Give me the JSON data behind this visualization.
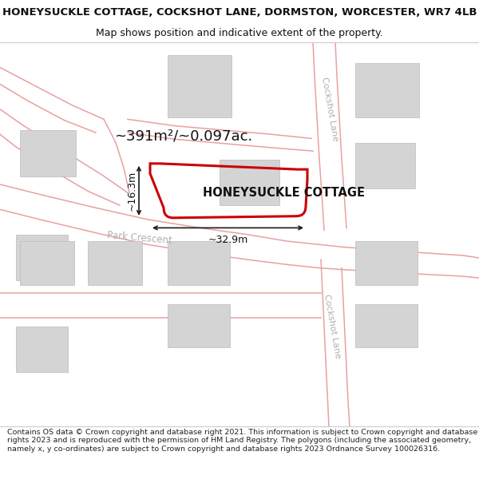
{
  "title_line1": "HONEYSUCKLE COTTAGE, COCKSHOT LANE, DORMSTON, WORCESTER, WR7 4LB",
  "title_line2": "Map shows position and indicative extent of the property.",
  "property_label": "HONEYSUCKLE COTTAGE",
  "area_label": "~391m²/~0.097ac.",
  "dim_width": "~32.9m",
  "dim_height": "~16.3m",
  "street_cockshot_top": "Cockshot Lane",
  "street_cockshot_bot": "Cockshot Lane",
  "street_park": "Park Crescent",
  "footer_text": "Contains OS data © Crown copyright and database right 2021. This information is subject to Crown copyright and database rights 2023 and is reproduced with the permission of HM Land Registry. The polygons (including the associated geometry, namely x, y co-ordinates) are subject to Crown copyright and database rights 2023 Ordnance Survey 100026316.",
  "bg_color": "#f5f5f5",
  "building_fill": "#d4d4d4",
  "building_edge": "#bbbbbb",
  "road_color": "#e8a0a0",
  "property_color": "#cc0000",
  "dim_color": "#1a1a1a",
  "text_dark": "#111111",
  "text_street": "#b0b0b0",
  "title_color": "#111111",
  "footer_color": "#222222",
  "separator_color": "#cccccc"
}
